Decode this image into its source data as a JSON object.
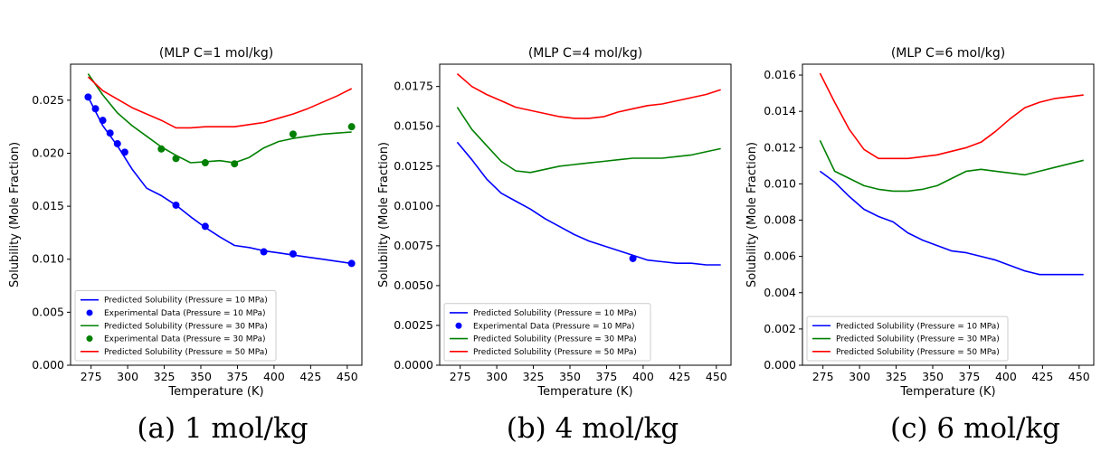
{
  "chart_data": [
    {
      "type": "line",
      "title": "(MLP  C=1 mol/kg)",
      "xlabel": "Temperature (K)",
      "ylabel": "Solubility (Mole Fraction)",
      "xlim": [
        261,
        460
      ],
      "ylim": [
        0.0,
        0.0284
      ],
      "xticks": [
        275,
        300,
        325,
        350,
        375,
        400,
        425,
        450
      ],
      "yticks": [
        0.0,
        0.005,
        0.01,
        0.015,
        0.02,
        0.025
      ],
      "ytick_labels": [
        "0.000",
        "0.005",
        "0.010",
        "0.015",
        "0.020",
        "0.025"
      ],
      "legend_position": "lower-left",
      "caption": "(a) 1 mol/kg",
      "series": [
        {
          "name": "Predicted Solubility (Pressure = 10 MPa)",
          "kind": "line",
          "color": "#0000ff",
          "x": [
            273,
            283,
            293,
            303,
            313,
            323,
            333,
            343,
            353,
            363,
            373,
            383,
            393,
            403,
            413,
            423,
            433,
            443,
            453
          ],
          "y": [
            0.0253,
            0.0226,
            0.0207,
            0.0185,
            0.0167,
            0.016,
            0.0151,
            0.014,
            0.013,
            0.0121,
            0.0113,
            0.0111,
            0.0108,
            0.0106,
            0.0104,
            0.0102,
            0.01,
            0.0098,
            0.0096
          ]
        },
        {
          "name": "Experimental Data (Pressure = 10 MPa)",
          "kind": "scatter",
          "color": "#0000ff",
          "x": [
            273,
            278,
            283,
            288,
            293,
            298,
            333,
            353,
            393,
            413,
            453
          ],
          "y": [
            0.0253,
            0.0242,
            0.0231,
            0.0219,
            0.0209,
            0.0201,
            0.0151,
            0.0131,
            0.0107,
            0.0105,
            0.0096
          ]
        },
        {
          "name": "Predicted Solubility (Pressure = 30 MPa)",
          "kind": "line",
          "color": "#008000",
          "x": [
            273,
            283,
            293,
            303,
            313,
            323,
            333,
            343,
            353,
            363,
            373,
            383,
            393,
            403,
            413,
            423,
            433,
            443,
            453
          ],
          "y": [
            0.0275,
            0.0255,
            0.0238,
            0.0226,
            0.0216,
            0.0206,
            0.0198,
            0.0191,
            0.0192,
            0.0193,
            0.0191,
            0.0196,
            0.0205,
            0.0211,
            0.0214,
            0.0216,
            0.0218,
            0.0219,
            0.022
          ]
        },
        {
          "name": "Experimental Data (Pressure = 30 MPa)",
          "kind": "scatter",
          "color": "#008000",
          "x": [
            323,
            333,
            353,
            373,
            413,
            453
          ],
          "y": [
            0.0204,
            0.0195,
            0.0191,
            0.019,
            0.0218,
            0.0225
          ]
        },
        {
          "name": "Predicted Solubility (Pressure = 50 MPa)",
          "kind": "line",
          "color": "#ff0000",
          "x": [
            273,
            283,
            293,
            303,
            313,
            323,
            333,
            343,
            353,
            363,
            373,
            383,
            393,
            403,
            413,
            423,
            433,
            443,
            453
          ],
          "y": [
            0.0272,
            0.0259,
            0.0251,
            0.0243,
            0.0237,
            0.0231,
            0.0224,
            0.0224,
            0.0225,
            0.0225,
            0.0225,
            0.0227,
            0.0229,
            0.0233,
            0.0237,
            0.0242,
            0.0248,
            0.0254,
            0.0261
          ]
        }
      ]
    },
    {
      "type": "line",
      "title": "(MLP  C=4 mol/kg)",
      "xlabel": "Temperature (K)",
      "ylabel": "Solubility (Mole Fraction)",
      "xlim": [
        261,
        460
      ],
      "ylim": [
        0.0,
        0.0189
      ],
      "xticks": [
        275,
        300,
        325,
        350,
        375,
        400,
        425,
        450
      ],
      "yticks": [
        0.0,
        0.0025,
        0.005,
        0.0075,
        0.01,
        0.0125,
        0.015,
        0.0175
      ],
      "ytick_labels": [
        "0.0000",
        "0.0025",
        "0.0050",
        "0.0075",
        "0.0100",
        "0.0125",
        "0.0150",
        "0.0175"
      ],
      "legend_position": "lower-left",
      "caption": "(b) 4 mol/kg",
      "series": [
        {
          "name": "Predicted Solubility (Pressure = 10 MPa)",
          "kind": "line",
          "color": "#0000ff",
          "x": [
            273,
            283,
            293,
            303,
            313,
            323,
            333,
            343,
            353,
            363,
            373,
            383,
            393,
            403,
            413,
            423,
            433,
            443,
            453
          ],
          "y": [
            0.014,
            0.0129,
            0.0117,
            0.0108,
            0.0103,
            0.0098,
            0.0092,
            0.0087,
            0.0082,
            0.0078,
            0.0075,
            0.0072,
            0.0069,
            0.0066,
            0.0065,
            0.0064,
            0.0064,
            0.0063,
            0.0063
          ]
        },
        {
          "name": "Experimental Data (Pressure = 10 MPa)",
          "kind": "scatter",
          "color": "#0000ff",
          "x": [
            393
          ],
          "y": [
            0.0067
          ]
        },
        {
          "name": "Predicted Solubility (Pressure = 30 MPa)",
          "kind": "line",
          "color": "#008000",
          "x": [
            273,
            283,
            293,
            303,
            313,
            323,
            333,
            343,
            353,
            363,
            373,
            383,
            393,
            403,
            413,
            423,
            433,
            443,
            453
          ],
          "y": [
            0.0162,
            0.0148,
            0.0138,
            0.0128,
            0.0122,
            0.0121,
            0.0123,
            0.0125,
            0.0126,
            0.0127,
            0.0128,
            0.0129,
            0.013,
            0.013,
            0.013,
            0.0131,
            0.0132,
            0.0134,
            0.0136
          ]
        },
        {
          "name": "Predicted Solubility (Pressure = 50 MPa)",
          "kind": "line",
          "color": "#ff0000",
          "x": [
            273,
            283,
            293,
            303,
            313,
            323,
            333,
            343,
            353,
            363,
            373,
            383,
            393,
            403,
            413,
            423,
            433,
            443,
            453
          ],
          "y": [
            0.0183,
            0.0175,
            0.017,
            0.0166,
            0.0162,
            0.016,
            0.0158,
            0.0156,
            0.0155,
            0.0155,
            0.0156,
            0.0159,
            0.0161,
            0.0163,
            0.0164,
            0.0166,
            0.0168,
            0.017,
            0.0173
          ]
        }
      ]
    },
    {
      "type": "line",
      "title": "(MLP  C=6 mol/kg)",
      "xlabel": "Temperature (K)",
      "ylabel": "Solubility (Mole Fraction)",
      "xlim": [
        261,
        460
      ],
      "ylim": [
        0.0,
        0.0166
      ],
      "xticks": [
        275,
        300,
        325,
        350,
        375,
        400,
        425,
        450
      ],
      "yticks": [
        0.0,
        0.002,
        0.004,
        0.006,
        0.008,
        0.01,
        0.012,
        0.014,
        0.016
      ],
      "ytick_labels": [
        "0.000",
        "0.002",
        "0.004",
        "0.006",
        "0.008",
        "0.010",
        "0.012",
        "0.014",
        "0.016"
      ],
      "legend_position": "lower-left",
      "caption": "(c) 6 mol/kg",
      "series": [
        {
          "name": "Predicted Solubility (Pressure = 10 MPa)",
          "kind": "line",
          "color": "#0000ff",
          "x": [
            273,
            283,
            293,
            303,
            313,
            323,
            333,
            343,
            353,
            363,
            373,
            383,
            393,
            403,
            413,
            423,
            433,
            443,
            453
          ],
          "y": [
            0.0107,
            0.0101,
            0.0093,
            0.0086,
            0.0082,
            0.0079,
            0.0073,
            0.0069,
            0.0066,
            0.0063,
            0.0062,
            0.006,
            0.0058,
            0.0055,
            0.0052,
            0.005,
            0.005,
            0.005,
            0.005
          ]
        },
        {
          "name": "Predicted Solubility (Pressure = 30 MPa)",
          "kind": "line",
          "color": "#008000",
          "x": [
            273,
            283,
            293,
            303,
            313,
            323,
            333,
            343,
            353,
            363,
            373,
            383,
            393,
            403,
            413,
            423,
            433,
            443,
            453
          ],
          "y": [
            0.0124,
            0.0107,
            0.0103,
            0.0099,
            0.0097,
            0.0096,
            0.0096,
            0.0097,
            0.0099,
            0.0103,
            0.0107,
            0.0108,
            0.0107,
            0.0106,
            0.0105,
            0.0107,
            0.0109,
            0.0111,
            0.0113
          ]
        },
        {
          "name": "Predicted Solubility (Pressure = 50 MPa)",
          "kind": "line",
          "color": "#ff0000",
          "x": [
            273,
            283,
            293,
            303,
            313,
            323,
            333,
            343,
            353,
            363,
            373,
            383,
            393,
            403,
            413,
            423,
            433,
            443,
            453
          ],
          "y": [
            0.0161,
            0.0145,
            0.013,
            0.0119,
            0.0114,
            0.0114,
            0.0114,
            0.0115,
            0.0116,
            0.0118,
            0.012,
            0.0123,
            0.0129,
            0.0136,
            0.0142,
            0.0145,
            0.0147,
            0.0148,
            0.0149
          ]
        }
      ]
    }
  ]
}
